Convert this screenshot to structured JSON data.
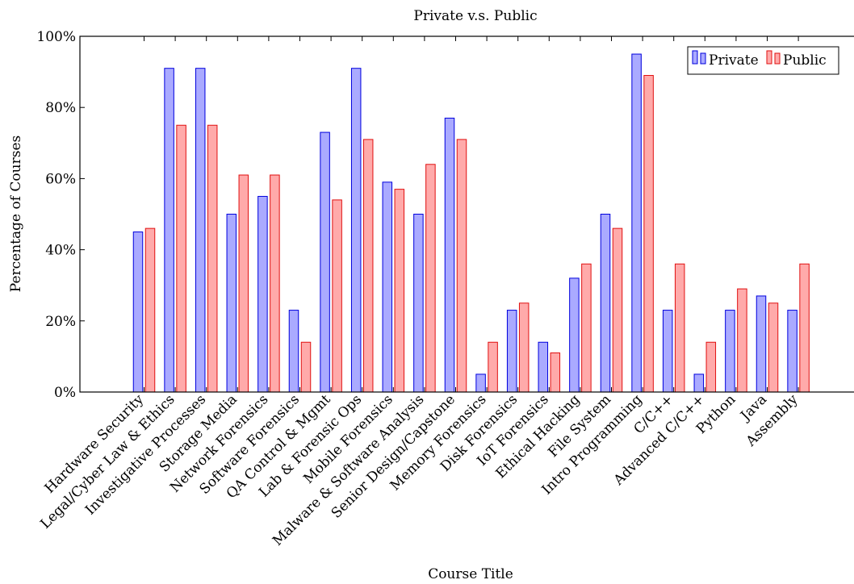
{
  "chart_data": {
    "type": "bar",
    "title": "Private v.s. Public",
    "xlabel": "Course Title",
    "ylabel": "Percentage of Courses",
    "ylim": [
      0,
      100
    ],
    "yticks": [
      0,
      20,
      40,
      60,
      80,
      100
    ],
    "ytick_suffix": "%",
    "legend_position": "top-right",
    "grid": false,
    "categories": [
      "Hardware Security",
      "Legal/Cyber Law & Ethics",
      "Investigative Processes",
      "Storage Media",
      "Network Forensics",
      "Software Forensics",
      "QA Control & Mgmt",
      "Lab & Forensic Ops",
      "Mobile Forensics",
      "Malware & Software Analysis",
      "Senior Design/Capstone",
      "Memory Forensics",
      "Disk Forensics",
      "IoT Forensics",
      "Ethical Hacking",
      "File System",
      "Intro Programming",
      "C/C++",
      "Advanced C/C++",
      "Python",
      "Java",
      "Assembly"
    ],
    "series": [
      {
        "name": "Private",
        "fill": "#aaaaff",
        "stroke": "#0000dd",
        "values": [
          45,
          91,
          91,
          50,
          55,
          23,
          73,
          91,
          59,
          50,
          77,
          5,
          23,
          14,
          32,
          50,
          95,
          23,
          5,
          23,
          27,
          23
        ]
      },
      {
        "name": "Public",
        "fill": "#ffaaaa",
        "stroke": "#e01010",
        "values": [
          46,
          75,
          75,
          61,
          61,
          14,
          54,
          71,
          57,
          64,
          71,
          14,
          25,
          11,
          36,
          46,
          89,
          36,
          14,
          29,
          25,
          36
        ]
      }
    ]
  }
}
